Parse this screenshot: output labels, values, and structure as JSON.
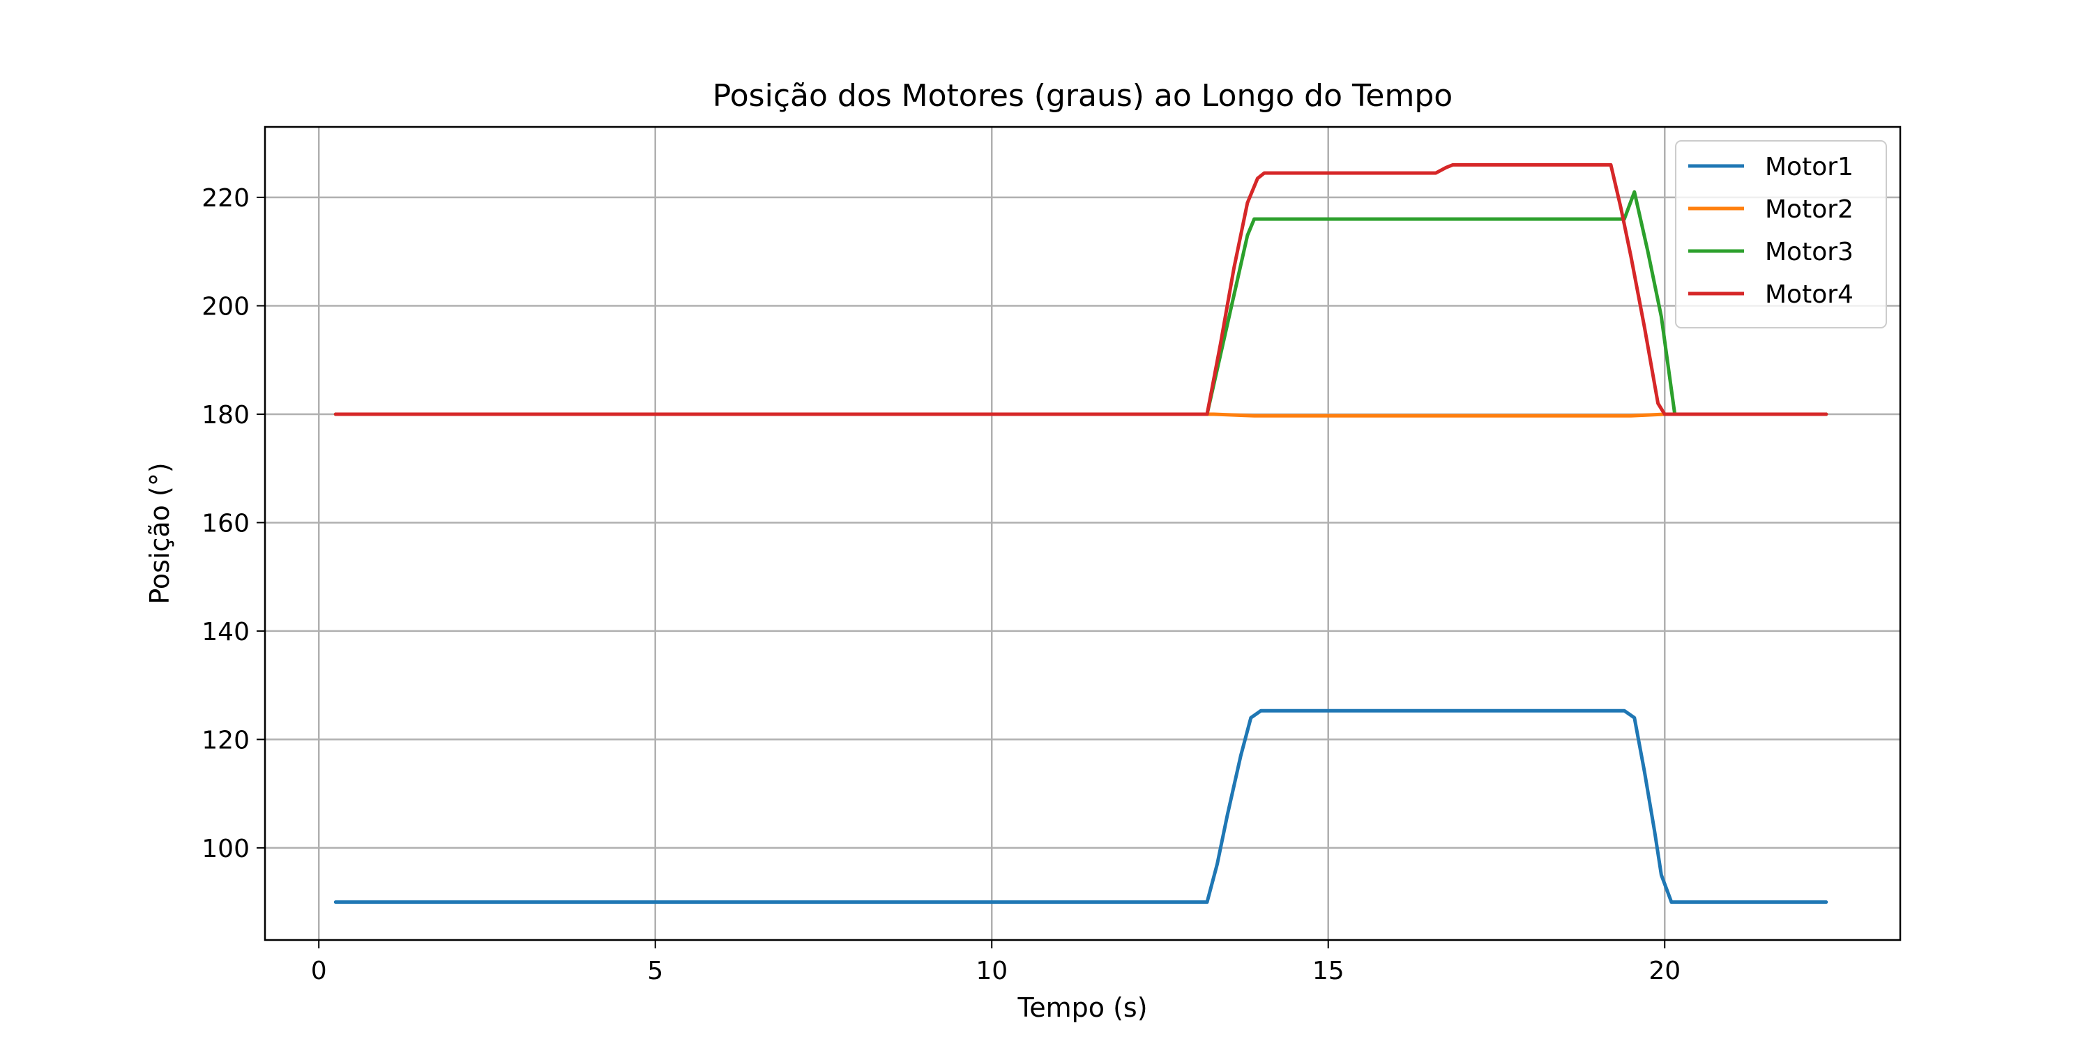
{
  "chart_data": {
    "type": "line",
    "title": "Posição dos Motores (graus) ao Longo do Tempo",
    "xlabel": "Tempo (s)",
    "ylabel": "Posição (°)",
    "xlim": [
      -0.8,
      23.5
    ],
    "ylim": [
      83,
      233
    ],
    "xticks": [
      0,
      5,
      10,
      15,
      20
    ],
    "yticks": [
      100,
      120,
      140,
      160,
      180,
      200,
      220
    ],
    "grid": true,
    "legend_position": "top-right",
    "series": [
      {
        "name": "Motor1",
        "color": "#1f77b4",
        "x": [
          0.25,
          13.2,
          13.35,
          13.5,
          13.7,
          13.85,
          14.0,
          19.4,
          19.55,
          19.7,
          19.85,
          19.95,
          20.1,
          22.4
        ],
        "y": [
          90,
          90,
          97,
          106,
          117,
          124,
          125.3,
          125.3,
          124,
          114,
          103,
          95,
          90,
          90
        ]
      },
      {
        "name": "Motor2",
        "color": "#ff7f0e",
        "x": [
          0.25,
          13.3,
          13.9,
          19.5,
          20.0,
          22.4
        ],
        "y": [
          180,
          180,
          179.7,
          179.7,
          180,
          180
        ]
      },
      {
        "name": "Motor3",
        "color": "#2ca02c",
        "x": [
          0.25,
          13.2,
          13.8,
          13.9,
          19.2,
          19.4,
          19.55,
          19.75,
          19.95,
          20.15,
          22.4
        ],
        "y": [
          180,
          180,
          213,
          216,
          216,
          216,
          221,
          210,
          198,
          180,
          180
        ]
      },
      {
        "name": "Motor4",
        "color": "#d62728",
        "x": [
          0.25,
          13.2,
          13.4,
          13.6,
          13.8,
          13.95,
          14.05,
          16.6,
          16.75,
          16.85,
          19.2,
          19.35,
          19.5,
          19.7,
          19.9,
          20.0,
          22.4
        ],
        "y": [
          180,
          180,
          193,
          207,
          219,
          223.5,
          224.5,
          224.5,
          225.5,
          226,
          226,
          218,
          209,
          196,
          182,
          180,
          180
        ]
      }
    ]
  }
}
